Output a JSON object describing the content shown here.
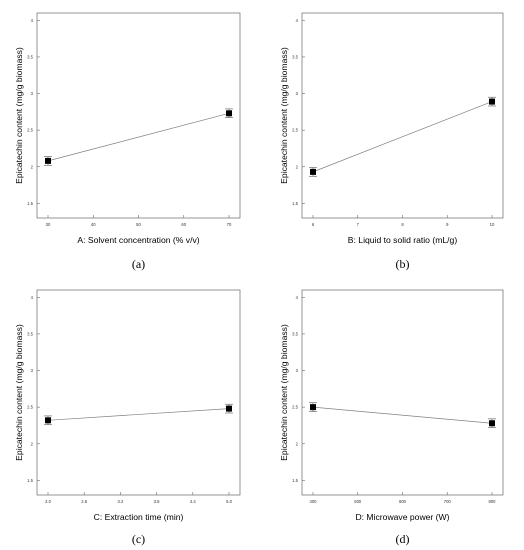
{
  "chart_data": [
    {
      "type": "line",
      "panel_label": "(a)",
      "xlabel": "A: Solvent concentration (% v/v)",
      "ylabel": "Epicatechin content (mg/g biomass)",
      "xlim": [
        30,
        70
      ],
      "ylim": [
        1.3,
        4.1
      ],
      "xticks": [
        "30",
        "40",
        "50",
        "60",
        "70"
      ],
      "yticks": [
        "1.5",
        "2",
        "2.5",
        "3",
        "3.5",
        "4"
      ],
      "x": [
        30,
        70
      ],
      "y": [
        2.08,
        2.73
      ],
      "y_err": [
        0.06,
        0.06
      ]
    },
    {
      "type": "line",
      "panel_label": "(b)",
      "xlabel": "B: Liquid to solid ratio (mL/g)",
      "ylabel": "Epicatechin content (mg/g biomass)",
      "xlim": [
        6,
        10
      ],
      "ylim": [
        1.3,
        4.1
      ],
      "xticks": [
        "6",
        "7",
        "8",
        "9",
        "10"
      ],
      "yticks": [
        "1.5",
        "2",
        "2.5",
        "3",
        "3.5",
        "4"
      ],
      "x": [
        6,
        10
      ],
      "y": [
        1.93,
        2.89
      ],
      "y_err": [
        0.06,
        0.06
      ]
    },
    {
      "type": "line",
      "panel_label": "(c)",
      "xlabel": "C: Extraction time (min)",
      "ylabel": "Epicatechin content (mg/g biomass)",
      "xlim": [
        2,
        5
      ],
      "ylim": [
        1.3,
        4.1
      ],
      "xticks": [
        "2.0",
        "2.6",
        "3.2",
        "3.8",
        "4.4",
        "5.0"
      ],
      "yticks": [
        "1.5",
        "2",
        "2.5",
        "3",
        "3.5",
        "4"
      ],
      "x": [
        2,
        5
      ],
      "y": [
        2.32,
        2.48
      ],
      "y_err": [
        0.06,
        0.06
      ]
    },
    {
      "type": "line",
      "panel_label": "(d)",
      "xlabel": "D: Microwave power (W)",
      "ylabel": "Epicatechin content (mg/g biomass)",
      "xlim": [
        400,
        800
      ],
      "ylim": [
        1.3,
        4.1
      ],
      "xticks": [
        "400",
        "500",
        "600",
        "700",
        "800"
      ],
      "yticks": [
        "1.5",
        "2",
        "2.5",
        "3",
        "3.5",
        "4"
      ],
      "x": [
        400,
        800
      ],
      "y": [
        2.5,
        2.28
      ],
      "y_err": [
        0.06,
        0.06
      ]
    }
  ]
}
